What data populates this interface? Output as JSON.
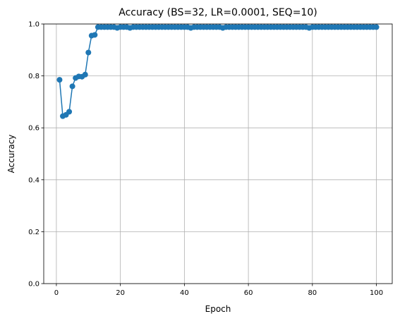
{
  "chart_data": {
    "type": "line",
    "title": "Accuracy (BS=32, LR=0.0001, SEQ=10)",
    "xlabel": "Epoch",
    "ylabel": "Accuracy",
    "xlim": [
      -3.95,
      104.95
    ],
    "ylim": [
      0.0,
      1.0
    ],
    "xticks": [
      0,
      20,
      40,
      60,
      80,
      100
    ],
    "yticks": [
      0.0,
      0.2,
      0.4,
      0.6,
      0.8,
      1.0
    ],
    "xtick_labels": [
      "0",
      "20",
      "40",
      "60",
      "80",
      "100"
    ],
    "ytick_labels": [
      "0.0",
      "0.2",
      "0.4",
      "0.6",
      "0.8",
      "1.0"
    ],
    "grid": true,
    "color": "#1f77b4",
    "marker": "circle",
    "series": [
      {
        "x": [
          1,
          2,
          3,
          4,
          5,
          6,
          7,
          8,
          9,
          10,
          11,
          12,
          13,
          14,
          15,
          16,
          17,
          18,
          19,
          20,
          21,
          22,
          23,
          24,
          25,
          26,
          27,
          28,
          29,
          30,
          31,
          32,
          33,
          34,
          35,
          36,
          37,
          38,
          39,
          40,
          41,
          42,
          43,
          44,
          45,
          46,
          47,
          48,
          49,
          50,
          51,
          52,
          53,
          54,
          55,
          56,
          57,
          58,
          59,
          60,
          61,
          62,
          63,
          64,
          65,
          66,
          67,
          68,
          69,
          70,
          71,
          72,
          73,
          74,
          75,
          76,
          77,
          78,
          79,
          80,
          81,
          82,
          83,
          84,
          85,
          86,
          87,
          88,
          89,
          90,
          91,
          92,
          93,
          94,
          95,
          96,
          97,
          98,
          99,
          100
        ],
        "y": [
          0.785,
          0.645,
          0.65,
          0.662,
          0.76,
          0.792,
          0.798,
          0.797,
          0.805,
          0.89,
          0.955,
          0.958,
          0.988,
          0.988,
          0.988,
          0.988,
          0.988,
          0.988,
          0.985,
          0.988,
          0.988,
          0.988,
          0.985,
          0.988,
          0.988,
          0.988,
          0.988,
          0.988,
          0.988,
          0.988,
          0.988,
          0.988,
          0.988,
          0.988,
          0.988,
          0.988,
          0.988,
          0.988,
          0.988,
          0.988,
          0.988,
          0.985,
          0.988,
          0.988,
          0.988,
          0.988,
          0.988,
          0.988,
          0.988,
          0.988,
          0.988,
          0.985,
          0.988,
          0.988,
          0.988,
          0.988,
          0.988,
          0.988,
          0.988,
          0.988,
          0.988,
          0.988,
          0.988,
          0.988,
          0.988,
          0.988,
          0.988,
          0.988,
          0.988,
          0.988,
          0.988,
          0.988,
          0.988,
          0.988,
          0.988,
          0.988,
          0.988,
          0.988,
          0.985,
          0.988,
          0.988,
          0.988,
          0.988,
          0.988,
          0.988,
          0.988,
          0.988,
          0.988,
          0.988,
          0.988,
          0.988,
          0.988,
          0.988,
          0.988,
          0.988,
          0.988,
          0.988,
          0.988,
          0.988,
          0.988
        ]
      }
    ]
  }
}
